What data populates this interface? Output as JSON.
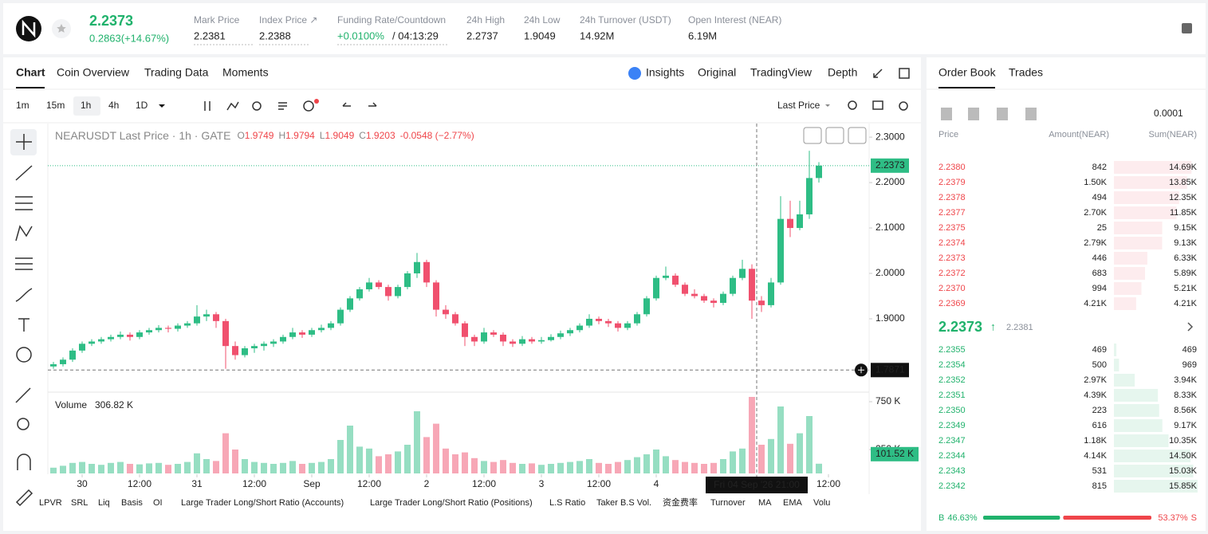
{
  "header": {
    "price": "2.2373",
    "change": "0.2863(+14.67%)",
    "stats": [
      {
        "label": "Mark Price",
        "value": "2.2381"
      },
      {
        "label": "Index Price ↗",
        "value": "2.2388"
      },
      {
        "label": "Funding Rate/Countdown",
        "value": "+0.0100%",
        "countdown": "/ 04:13:29"
      },
      {
        "label": "24h High",
        "value": "2.2737"
      },
      {
        "label": "24h Low",
        "value": "1.9049"
      },
      {
        "label": "24h Turnover (USDT)",
        "value": "14.92M"
      },
      {
        "label": "Open Interest (NEAR)",
        "value": "6.19M"
      }
    ]
  },
  "tabs": [
    "Chart",
    "Coin Overview",
    "Trading Data",
    "Moments"
  ],
  "views": [
    "Insights",
    "Original",
    "TradingView",
    "Depth"
  ],
  "intervals": [
    "1m",
    "15m",
    "1h",
    "4h",
    "1D"
  ],
  "price_type": "Last Price",
  "legend": {
    "title": "NEARUSDT Last Price · 1h · GATE",
    "ohlc": [
      {
        "k": "O",
        "v": "1.9749"
      },
      {
        "k": "H",
        "v": "1.9794"
      },
      {
        "k": "L",
        "v": "1.9049"
      },
      {
        "k": "C",
        "v": "1.9203"
      }
    ],
    "change": "-0.0548 (−2.77%)",
    "volume_title": "Volume",
    "volume_value": "306.82 K",
    "last_volume": "101.52 K"
  },
  "chart_data": {
    "type": "candlestick",
    "candles": [
      [
        1.795,
        1.805,
        1.79,
        1.8
      ],
      [
        1.8,
        1.815,
        1.795,
        1.81
      ],
      [
        1.81,
        1.835,
        1.805,
        1.83
      ],
      [
        1.83,
        1.85,
        1.825,
        1.845
      ],
      [
        1.845,
        1.855,
        1.84,
        1.85
      ],
      [
        1.85,
        1.86,
        1.845,
        1.855
      ],
      [
        1.855,
        1.865,
        1.85,
        1.86
      ],
      [
        1.86,
        1.872,
        1.855,
        1.865
      ],
      [
        1.865,
        1.87,
        1.852,
        1.86
      ],
      [
        1.86,
        1.875,
        1.855,
        1.87
      ],
      [
        1.87,
        1.88,
        1.865,
        1.875
      ],
      [
        1.875,
        1.886,
        1.87,
        1.88
      ],
      [
        1.88,
        1.885,
        1.87,
        1.878
      ],
      [
        1.878,
        1.89,
        1.872,
        1.885
      ],
      [
        1.885,
        1.895,
        1.88,
        1.89
      ],
      [
        1.89,
        1.93,
        1.885,
        1.905
      ],
      [
        1.905,
        1.92,
        1.895,
        1.91
      ],
      [
        1.91,
        1.915,
        1.88,
        1.895
      ],
      [
        1.895,
        1.9,
        1.79,
        1.84
      ],
      [
        1.84,
        1.85,
        1.81,
        1.82
      ],
      [
        1.82,
        1.84,
        1.815,
        1.835
      ],
      [
        1.835,
        1.845,
        1.825,
        1.84
      ],
      [
        1.84,
        1.85,
        1.83,
        1.845
      ],
      [
        1.845,
        1.855,
        1.838,
        1.85
      ],
      [
        1.85,
        1.865,
        1.845,
        1.86
      ],
      [
        1.86,
        1.88,
        1.855,
        1.87
      ],
      [
        1.87,
        1.875,
        1.858,
        1.865
      ],
      [
        1.865,
        1.88,
        1.86,
        1.875
      ],
      [
        1.875,
        1.887,
        1.87,
        1.88
      ],
      [
        1.88,
        1.895,
        1.875,
        1.89
      ],
      [
        1.89,
        1.925,
        1.885,
        1.92
      ],
      [
        1.92,
        1.95,
        1.915,
        1.945
      ],
      [
        1.945,
        1.97,
        1.94,
        1.965
      ],
      [
        1.965,
        1.99,
        1.96,
        1.98
      ],
      [
        1.98,
        1.985,
        1.965,
        1.97
      ],
      [
        1.97,
        1.975,
        1.94,
        1.95
      ],
      [
        1.95,
        1.975,
        1.945,
        1.97
      ],
      [
        1.97,
        2.005,
        1.965,
        2.0
      ],
      [
        2.0,
        2.045,
        1.99,
        2.025
      ],
      [
        2.025,
        2.03,
        1.97,
        1.98
      ],
      [
        1.98,
        1.985,
        1.905,
        1.92
      ],
      [
        1.92,
        1.93,
        1.9,
        1.91
      ],
      [
        1.91,
        1.915,
        1.885,
        1.89
      ],
      [
        1.89,
        1.895,
        1.84,
        1.86
      ],
      [
        1.86,
        1.865,
        1.84,
        1.85
      ],
      [
        1.85,
        1.88,
        1.845,
        1.87
      ],
      [
        1.87,
        1.875,
        1.86,
        1.865
      ],
      [
        1.865,
        1.87,
        1.84,
        1.85
      ],
      [
        1.85,
        1.855,
        1.838,
        1.845
      ],
      [
        1.845,
        1.862,
        1.84,
        1.855
      ],
      [
        1.855,
        1.86,
        1.845,
        1.85
      ],
      [
        1.85,
        1.86,
        1.845,
        1.853
      ],
      [
        1.853,
        1.866,
        1.85,
        1.86
      ],
      [
        1.86,
        1.874,
        1.855,
        1.868
      ],
      [
        1.868,
        1.88,
        1.862,
        1.875
      ],
      [
        1.875,
        1.89,
        1.87,
        1.885
      ],
      [
        1.885,
        1.91,
        1.88,
        1.9
      ],
      [
        1.9,
        1.905,
        1.888,
        1.895
      ],
      [
        1.895,
        1.9,
        1.882,
        1.89
      ],
      [
        1.89,
        1.895,
        1.872,
        1.88
      ],
      [
        1.88,
        1.895,
        1.875,
        1.89
      ],
      [
        1.89,
        1.915,
        1.885,
        1.91
      ],
      [
        1.91,
        1.95,
        1.905,
        1.945
      ],
      [
        1.945,
        1.995,
        1.94,
        1.99
      ],
      [
        1.99,
        2.015,
        1.985,
        1.995
      ],
      [
        1.995,
        2.0,
        1.97,
        1.975
      ],
      [
        1.975,
        1.98,
        1.95,
        1.955
      ],
      [
        1.955,
        1.965,
        1.945,
        1.95
      ],
      [
        1.95,
        1.955,
        1.935,
        1.94
      ],
      [
        1.94,
        1.945,
        1.925,
        1.935
      ],
      [
        1.935,
        1.96,
        1.93,
        1.955
      ],
      [
        1.955,
        1.995,
        1.95,
        1.99
      ],
      [
        1.99,
        2.03,
        1.985,
        2.01
      ],
      [
        2.01,
        2.02,
        1.9,
        1.94
      ],
      [
        1.94,
        1.95,
        1.915,
        1.93
      ],
      [
        1.93,
        1.99,
        1.925,
        1.98
      ],
      [
        1.98,
        2.17,
        1.975,
        2.12
      ],
      [
        2.12,
        2.16,
        2.08,
        2.1
      ],
      [
        2.1,
        2.16,
        2.095,
        2.13
      ],
      [
        2.13,
        2.27,
        2.12,
        2.21
      ],
      [
        2.21,
        2.245,
        2.2,
        2.2373
      ]
    ],
    "volumes": [
      60000,
      80000,
      110000,
      120000,
      100000,
      90000,
      110000,
      120000,
      100000,
      95000,
      105000,
      110000,
      90000,
      100000,
      120000,
      210000,
      150000,
      130000,
      420000,
      250000,
      150000,
      120000,
      110000,
      100000,
      110000,
      130000,
      100000,
      110000,
      120000,
      150000,
      350000,
      500000,
      280000,
      260000,
      180000,
      200000,
      230000,
      300000,
      650000,
      380000,
      520000,
      260000,
      200000,
      220000,
      160000,
      130000,
      120000,
      140000,
      110000,
      100000,
      105000,
      90000,
      100000,
      110000,
      120000,
      130000,
      150000,
      110000,
      100000,
      120000,
      140000,
      170000,
      200000,
      250000,
      180000,
      140000,
      120000,
      110000,
      100000,
      110000,
      150000,
      230000,
      260000,
      800000,
      300000,
      360000,
      700000,
      310000,
      420000,
      600000,
      101520
    ],
    "up_color": "#2ebd85",
    "down_color": "#f0506e",
    "xlim": [
      -0.583,
      85.25
    ],
    "xticks": [
      {
        "value": 3,
        "label": "30"
      },
      {
        "value": 9,
        "label": "12:00"
      },
      {
        "value": 15,
        "label": "31"
      },
      {
        "value": 21,
        "label": "12:00"
      },
      {
        "value": 27,
        "label": "Sep"
      },
      {
        "value": 33,
        "label": "12:00"
      },
      {
        "value": 39,
        "label": "2"
      },
      {
        "value": 45,
        "label": "12:00"
      },
      {
        "value": 51,
        "label": "3"
      },
      {
        "value": 57,
        "label": "12:00"
      },
      {
        "value": 63,
        "label": "4"
      },
      {
        "value": 81,
        "label": "12:00"
      }
    ],
    "ylim": [
      1.742,
      2.33
    ],
    "yticks": [
      {
        "value": 1.9,
        "label": "1.9000"
      },
      {
        "value": 2.0,
        "label": "2.0000"
      },
      {
        "value": 2.1,
        "label": "2.1000"
      },
      {
        "value": 2.2,
        "label": "2.2000"
      },
      {
        "value": 2.3,
        "label": "2.3000"
      }
    ],
    "y2lim": [
      0,
      825000
    ],
    "y2ticks": [
      {
        "value": 250000,
        "label": "250 K"
      },
      {
        "value": 750000,
        "label": "750 K"
      }
    ],
    "last_price": 2.2373,
    "crosshair": {
      "x": 73.5,
      "x_label": "Fri 04 Sep '26  21:00",
      "y": 1.7871
    }
  },
  "indicators": [
    "LPVR",
    "SRL",
    "Liq",
    "Basis",
    "OI",
    "Large Trader Long/Short Ratio (Accounts)",
    "Large Trader Long/Short Ratio (Positions)",
    "L.S Ratio",
    "Taker B.S Vol.",
    "资金费率",
    "Turnover",
    "MA",
    "EMA",
    "Volu"
  ],
  "order_book": {
    "tabs": [
      "Order Book",
      "Trades"
    ],
    "precision": "0.0001",
    "columns": [
      "Price",
      "Amount(NEAR)",
      "Sum(NEAR)"
    ],
    "asks": [
      [
        "2.2380",
        "842",
        "14.69K"
      ],
      [
        "2.2379",
        "1.50K",
        "13.85K"
      ],
      [
        "2.2378",
        "494",
        "12.35K"
      ],
      [
        "2.2377",
        "2.70K",
        "11.85K"
      ],
      [
        "2.2375",
        "25",
        "9.15K"
      ],
      [
        "2.2374",
        "2.79K",
        "9.13K"
      ],
      [
        "2.2373",
        "446",
        "6.33K"
      ],
      [
        "2.2372",
        "683",
        "5.89K"
      ],
      [
        "2.2370",
        "994",
        "5.21K"
      ],
      [
        "2.2369",
        "4.21K",
        "4.21K"
      ]
    ],
    "mid": {
      "price": "2.2373",
      "arrow": "↑",
      "mark": "2.2381"
    },
    "bids": [
      [
        "2.2355",
        "469",
        "469"
      ],
      [
        "2.2354",
        "500",
        "969"
      ],
      [
        "2.2352",
        "2.97K",
        "3.94K"
      ],
      [
        "2.2351",
        "4.39K",
        "8.33K"
      ],
      [
        "2.2350",
        "223",
        "8.56K"
      ],
      [
        "2.2349",
        "616",
        "9.17K"
      ],
      [
        "2.2347",
        "1.18K",
        "10.35K"
      ],
      [
        "2.2344",
        "4.14K",
        "14.50K"
      ],
      [
        "2.2343",
        "531",
        "15.03K"
      ],
      [
        "2.2342",
        "815",
        "15.85K"
      ]
    ],
    "ratio": {
      "buy_label": "B",
      "buy": "46.63%",
      "sell": "53.37%",
      "sell_label": "S"
    }
  }
}
